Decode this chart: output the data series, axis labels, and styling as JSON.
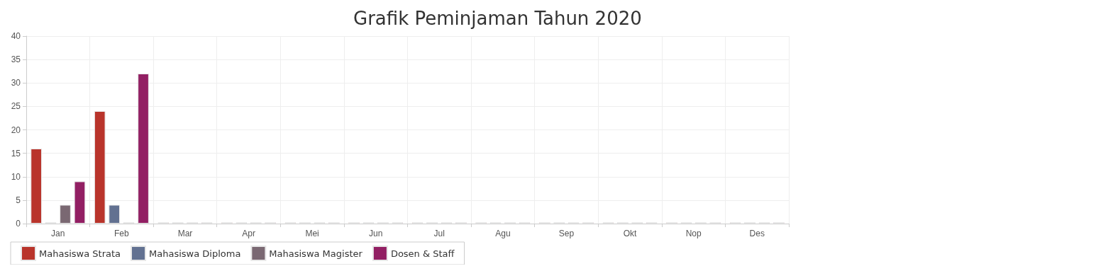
{
  "chart_data": {
    "type": "bar",
    "title": "Grafik Peminjaman Tahun 2020",
    "categories": [
      "Jan",
      "Feb",
      "Mar",
      "Apr",
      "Mei",
      "Jun",
      "Jul",
      "Agu",
      "Sep",
      "Okt",
      "Nop",
      "Des"
    ],
    "series": [
      {
        "name": "Mahasiswa Strata",
        "color": "#b9342b",
        "values": [
          16,
          24,
          0,
          0,
          0,
          0,
          0,
          0,
          0,
          0,
          0,
          0
        ]
      },
      {
        "name": "Mahasiswa Diploma",
        "color": "#627191",
        "values": [
          0,
          4,
          0,
          0,
          0,
          0,
          0,
          0,
          0,
          0,
          0,
          0
        ]
      },
      {
        "name": "Mahasiswa Magister",
        "color": "#7a6872",
        "values": [
          4,
          0,
          0,
          0,
          0,
          0,
          0,
          0,
          0,
          0,
          0,
          0
        ]
      },
      {
        "name": "Dosen & Staff",
        "color": "#921f63",
        "values": [
          9,
          32,
          0,
          0,
          0,
          0,
          0,
          0,
          0,
          0,
          0,
          0
        ]
      }
    ],
    "ylim": [
      0,
      40
    ],
    "yticks": [
      0,
      5,
      10,
      15,
      20,
      25,
      30,
      35,
      40
    ],
    "grid": true,
    "legend": "bottom"
  }
}
